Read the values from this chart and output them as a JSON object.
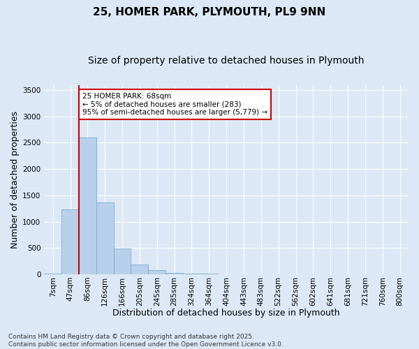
{
  "title1": "25, HOMER PARK, PLYMOUTH, PL9 9NN",
  "title2": "Size of property relative to detached houses in Plymouth",
  "xlabel": "Distribution of detached houses by size in Plymouth",
  "ylabel": "Number of detached properties",
  "categories": [
    "7sqm",
    "47sqm",
    "86sqm",
    "126sqm",
    "166sqm",
    "205sqm",
    "245sqm",
    "285sqm",
    "324sqm",
    "364sqm",
    "404sqm",
    "443sqm",
    "483sqm",
    "522sqm",
    "562sqm",
    "602sqm",
    "641sqm",
    "681sqm",
    "721sqm",
    "760sqm",
    "800sqm"
  ],
  "values": [
    10,
    1230,
    2600,
    1360,
    490,
    185,
    80,
    20,
    10,
    10,
    0,
    0,
    0,
    0,
    0,
    0,
    0,
    0,
    0,
    0,
    0
  ],
  "bar_color": "#b8d0ea",
  "bar_edge_color": "#7aaad0",
  "vline_x": 1.5,
  "vline_color": "#cc0000",
  "annotation_text": "25 HOMER PARK: 68sqm\n← 5% of detached houses are smaller (283)\n95% of semi-detached houses are larger (5,779) →",
  "annotation_box_facecolor": "#ffffff",
  "annotation_box_edgecolor": "#cc0000",
  "ylim": [
    0,
    3600
  ],
  "yticks": [
    0,
    500,
    1000,
    1500,
    2000,
    2500,
    3000,
    3500
  ],
  "background_color": "#dce8f5",
  "plot_bg_color": "#dce8f5",
  "grid_color": "#ffffff",
  "footnote": "Contains HM Land Registry data © Crown copyright and database right 2025.\nContains public sector information licensed under the Open Government Licence v3.0.",
  "title_fontsize": 11,
  "subtitle_fontsize": 10,
  "axis_label_fontsize": 9,
  "tick_fontsize": 7.5,
  "annotation_fontsize": 7.5,
  "footnote_fontsize": 6.5
}
